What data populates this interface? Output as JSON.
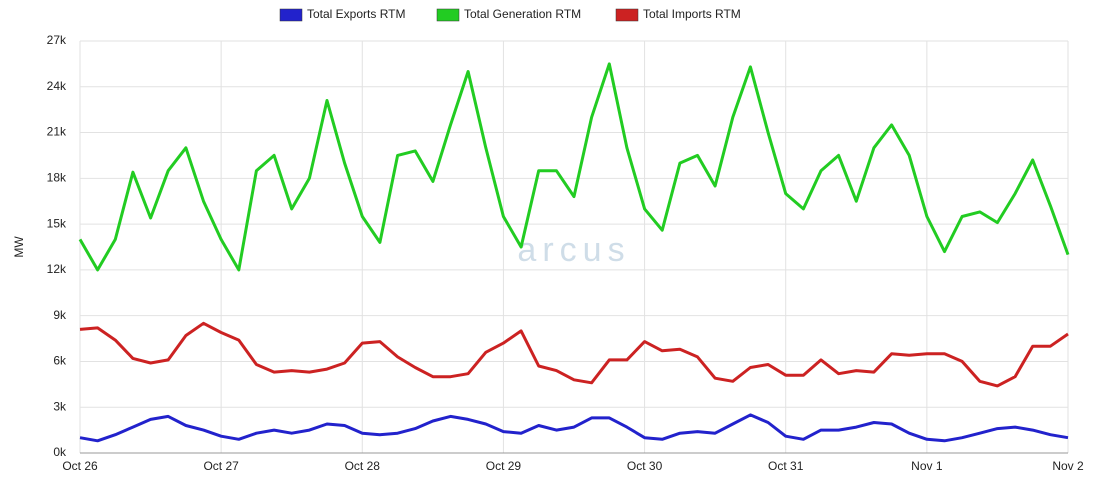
{
  "chart_data": {
    "type": "line",
    "y_label": "MW",
    "watermark": "arcus",
    "x": [
      0,
      0.125,
      0.25,
      0.375,
      0.5,
      0.625,
      0.75,
      0.875,
      1,
      1.125,
      1.25,
      1.375,
      1.5,
      1.625,
      1.75,
      1.875,
      2,
      2.125,
      2.25,
      2.375,
      2.5,
      2.625,
      2.75,
      2.875,
      3,
      3.125,
      3.25,
      3.375,
      3.5,
      3.625,
      3.75,
      3.875,
      4,
      4.125,
      4.25,
      4.375,
      4.5,
      4.625,
      4.75,
      4.875,
      5,
      5.125,
      5.25,
      5.375,
      5.5,
      5.625,
      5.75,
      5.875,
      6,
      6.125,
      6.25,
      6.375,
      6.5,
      6.625,
      6.75,
      6.875,
      7
    ],
    "series": [
      {
        "name": "Total Exports RTM",
        "color": "#2222cc",
        "values": [
          1000,
          800,
          1200,
          1700,
          2200,
          2400,
          1800,
          1500,
          1100,
          900,
          1300,
          1500,
          1300,
          1500,
          1900,
          1800,
          1300,
          1200,
          1300,
          1600,
          2100,
          2400,
          2200,
          1900,
          1400,
          1300,
          1800,
          1500,
          1700,
          2300,
          2300,
          1700,
          1000,
          900,
          1300,
          1400,
          1300,
          1900,
          2500,
          2000,
          1100,
          900,
          1500,
          1500,
          1700,
          2000,
          1900,
          1300,
          900,
          800,
          1000,
          1300,
          1600,
          1700,
          1500,
          1200,
          1000
        ]
      },
      {
        "name": "Total Generation RTM",
        "color": "#22cc22",
        "values": [
          14000,
          12000,
          14000,
          18400,
          15400,
          18500,
          20000,
          16500,
          14000,
          12000,
          18500,
          19500,
          16000,
          18000,
          23100,
          19000,
          15500,
          13800,
          19500,
          19800,
          17800,
          21500,
          25000,
          20000,
          15500,
          13500,
          18500,
          18500,
          16800,
          22000,
          25500,
          20000,
          16000,
          14600,
          19000,
          19500,
          17500,
          22000,
          25300,
          21000,
          17000,
          16000,
          18500,
          19500,
          16500,
          20000,
          21500,
          19500,
          15500,
          13200,
          15500,
          15800,
          15100,
          17000,
          19200,
          16200,
          13000
        ]
      },
      {
        "name": "Total Imports RTM",
        "color": "#cc2222",
        "values": [
          8100,
          8200,
          7400,
          6200,
          5900,
          6100,
          7700,
          8500,
          7900,
          7400,
          5800,
          5300,
          5400,
          5300,
          5500,
          5900,
          7200,
          7300,
          6300,
          5600,
          5000,
          5000,
          5200,
          6600,
          7200,
          8000,
          5700,
          5400,
          4800,
          4600,
          6100,
          6100,
          7300,
          6700,
          6800,
          6300,
          4900,
          4700,
          5600,
          5800,
          5100,
          5100,
          6100,
          5200,
          5400,
          5300,
          6500,
          6400,
          6500,
          6500,
          6000,
          4700,
          4400,
          5000,
          7000,
          7000,
          7800
        ]
      }
    ],
    "xlim": [
      0,
      7
    ],
    "xticks": [
      {
        "value": 0,
        "label": "Oct 26"
      },
      {
        "value": 1,
        "label": "Oct 27"
      },
      {
        "value": 2,
        "label": "Oct 28"
      },
      {
        "value": 3,
        "label": "Oct 29"
      },
      {
        "value": 4,
        "label": "Oct 30"
      },
      {
        "value": 5,
        "label": "Oct 31"
      },
      {
        "value": 6,
        "label": "Nov 1"
      },
      {
        "value": 7,
        "label": "Nov 2"
      }
    ],
    "ylim": [
      0,
      27000
    ],
    "yticks": [
      {
        "value": 0,
        "label": "0k"
      },
      {
        "value": 3000,
        "label": "3k"
      },
      {
        "value": 6000,
        "label": "6k"
      },
      {
        "value": 9000,
        "label": "9k"
      },
      {
        "value": 12000,
        "label": "12k"
      },
      {
        "value": 15000,
        "label": "15k"
      },
      {
        "value": 18000,
        "label": "18k"
      },
      {
        "value": 21000,
        "label": "21k"
      },
      {
        "value": 24000,
        "label": "24k"
      },
      {
        "value": 27000,
        "label": "27k"
      }
    ],
    "grid": true
  }
}
